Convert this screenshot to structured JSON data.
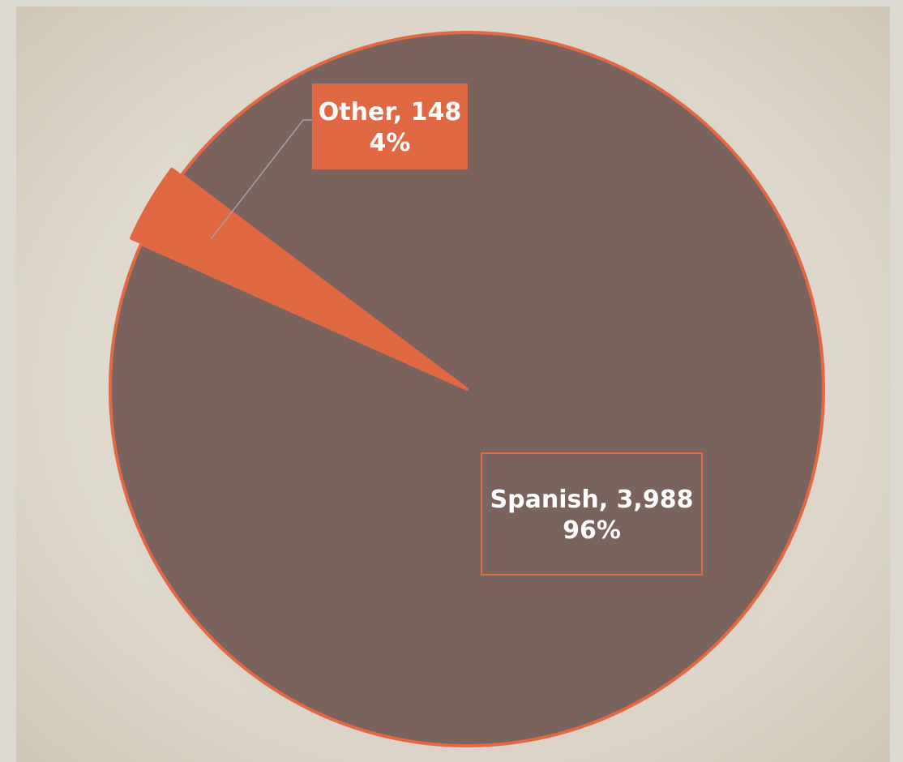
{
  "chart_data": {
    "type": "pie",
    "title": "",
    "slices": [
      {
        "label": "Spanish",
        "value": 3988,
        "value_text": "3,988",
        "percent_text": "96%",
        "color": "#7a625d"
      },
      {
        "label": "Other",
        "value": 148,
        "value_text": "148",
        "percent_text": "4%",
        "color": "#e06842"
      }
    ],
    "exploded_slice": "Other",
    "legend": "none",
    "colors": {
      "background": "#dcd8d2",
      "outline": "#e06842",
      "label_text": "#ffffff"
    }
  }
}
